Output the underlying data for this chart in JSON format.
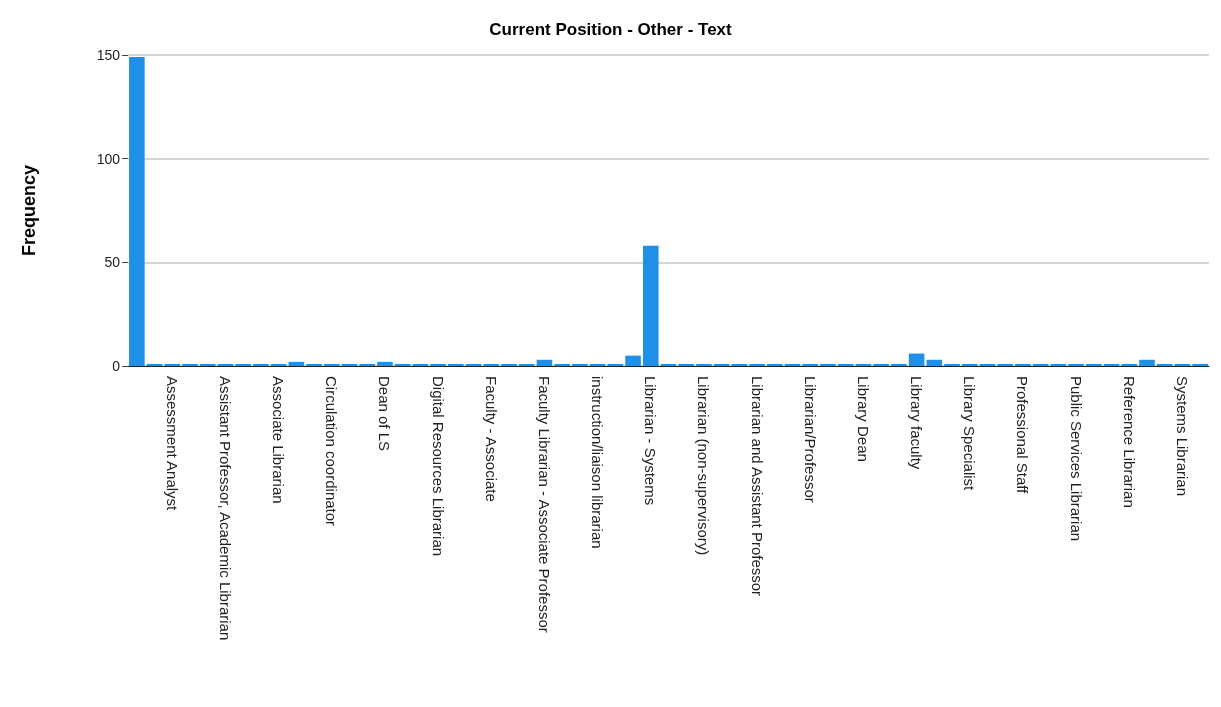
{
  "chart_data": {
    "type": "bar",
    "title": "Current Position - Other - Text",
    "ylabel": "Frequency",
    "categories": [
      null,
      null,
      "Assessment Analyst",
      null,
      null,
      "Assistant Professor, Academic Librarian",
      null,
      null,
      "Associate Librarian",
      null,
      null,
      "Circulation coordinator",
      null,
      null,
      "Dean of LS",
      null,
      null,
      "Digital Resources Librarian",
      null,
      null,
      "Faculty - Associate",
      null,
      null,
      "Faculty Librarian - Associate Professor",
      null,
      null,
      "instruction/liaison librarian",
      null,
      null,
      "Librarian - Systems",
      null,
      null,
      "Librarian (non-supervisory)",
      null,
      null,
      "Librarian and Assistant Professor",
      null,
      null,
      "Librarian/Professor",
      null,
      null,
      "Library Dean",
      null,
      null,
      "Library faculty",
      null,
      null,
      "Library Specialist",
      null,
      null,
      "Professional Staff",
      null,
      null,
      "Public Services Librarian",
      null,
      null,
      "Reference Librarian",
      null,
      null,
      "Systems Librarian",
      null
    ],
    "values": [
      149,
      1,
      1,
      1,
      1,
      1,
      1,
      1,
      1,
      2,
      1,
      1,
      1,
      1,
      2,
      1,
      1,
      1,
      1,
      1,
      1,
      1,
      1,
      3,
      1,
      1,
      1,
      1,
      5,
      58,
      1,
      1,
      1,
      1,
      1,
      1,
      1,
      1,
      1,
      1,
      1,
      1,
      1,
      1,
      6,
      3,
      1,
      1,
      1,
      1,
      1,
      1,
      1,
      1,
      1,
      1,
      1,
      3,
      1,
      1,
      1
    ],
    "color": "#1e90e8",
    "ylim": [
      0,
      150
    ],
    "yticks": [
      0,
      50,
      100,
      150
    ],
    "grid": "y"
  }
}
